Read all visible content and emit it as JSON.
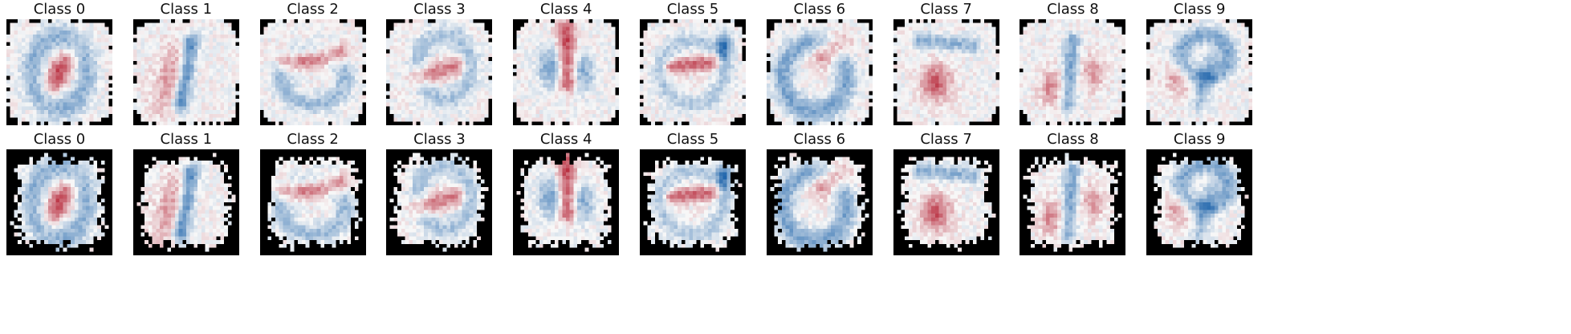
{
  "figure": {
    "rows": [
      {
        "name": "top",
        "panels": [
          {
            "title": "Class 0",
            "seed": 101,
            "pattern": "zero",
            "masked": false
          },
          {
            "title": "Class 1",
            "seed": 102,
            "pattern": "one",
            "masked": false
          },
          {
            "title": "Class 2",
            "seed": 103,
            "pattern": "two",
            "masked": false
          },
          {
            "title": "Class 3",
            "seed": 104,
            "pattern": "three",
            "masked": false
          },
          {
            "title": "Class 4",
            "seed": 105,
            "pattern": "four",
            "masked": false
          },
          {
            "title": "Class 5",
            "seed": 106,
            "pattern": "five",
            "masked": false
          },
          {
            "title": "Class 6",
            "seed": 107,
            "pattern": "six",
            "masked": false
          },
          {
            "title": "Class 7",
            "seed": 108,
            "pattern": "seven",
            "masked": false
          },
          {
            "title": "Class 8",
            "seed": 109,
            "pattern": "eight",
            "masked": false
          },
          {
            "title": "Class 9",
            "seed": 110,
            "pattern": "nine",
            "masked": false
          }
        ]
      },
      {
        "name": "bottom",
        "panels": [
          {
            "title": "Class 0",
            "seed": 101,
            "pattern": "zero",
            "masked": true
          },
          {
            "title": "Class 1",
            "seed": 102,
            "pattern": "one",
            "masked": true
          },
          {
            "title": "Class 2",
            "seed": 103,
            "pattern": "two",
            "masked": true
          },
          {
            "title": "Class 3",
            "seed": 104,
            "pattern": "three",
            "masked": true
          },
          {
            "title": "Class 4",
            "seed": 105,
            "pattern": "four",
            "masked": true
          },
          {
            "title": "Class 5",
            "seed": 106,
            "pattern": "five",
            "masked": true
          },
          {
            "title": "Class 6",
            "seed": 107,
            "pattern": "six",
            "masked": true
          },
          {
            "title": "Class 7",
            "seed": 108,
            "pattern": "seven",
            "masked": true
          },
          {
            "title": "Class 8",
            "seed": 109,
            "pattern": "eight",
            "masked": true
          },
          {
            "title": "Class 9",
            "seed": 110,
            "pattern": "nine",
            "masked": true
          }
        ]
      }
    ],
    "colormap": {
      "name": "RdBu",
      "negative": "#2166ac",
      "mid": "#f7f7f7",
      "positive": "#b2182b",
      "background": "#000000"
    }
  }
}
